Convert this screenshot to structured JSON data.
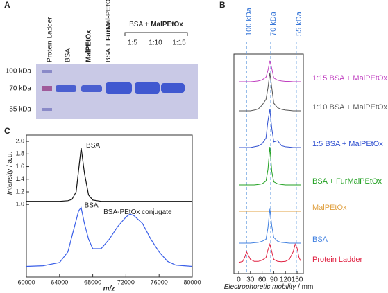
{
  "panel_a": {
    "letter": "A",
    "lanes": [
      "Protein Ladder",
      "BSA",
      "MalPEtOx"
    ],
    "lane4": [
      "BSA +",
      "FurMal-PEtOx"
    ],
    "group": [
      "BSA +",
      "MalPEtOx"
    ],
    "ratios": [
      "1:5",
      "1:10",
      "1:15"
    ],
    "markers": [
      "100 kDa",
      "70 kDa",
      "55 kDa"
    ]
  },
  "chart_data": [
    {
      "type": "line",
      "letter": "B",
      "xlabel": [
        "Electrophoretic mobility",
        "/ mm"
      ],
      "xlim": [
        -12.5,
        166
      ],
      "xticks": [
        0,
        30,
        60,
        90,
        120,
        150
      ],
      "marker_lines": [
        {
          "label": "100 kDa",
          "x": 20
        },
        {
          "label": "70 kDa",
          "x": 82
        },
        {
          "label": "55 kDa",
          "x": 148
        }
      ],
      "x": [
        0,
        10,
        15,
        20,
        25,
        30,
        40,
        50,
        60,
        70,
        75,
        80,
        85,
        90,
        100,
        110,
        120,
        130,
        140,
        145,
        150,
        155,
        160
      ],
      "series": [
        {
          "name": "1:15 BSA + MalPEtOx",
          "color": "#c040c0",
          "values": [
            0,
            0,
            0,
            0,
            0,
            0,
            0.01,
            0.02,
            0.05,
            0.12,
            0.3,
            0.55,
            0.35,
            0.1,
            0.04,
            0.02,
            0.01,
            0.01,
            0,
            0,
            0,
            0,
            0
          ]
        },
        {
          "name": "1:10 BSA + MalPEtOx",
          "color": "#555555",
          "values": [
            0,
            0,
            0,
            0,
            0,
            0,
            0.02,
            0.05,
            0.15,
            0.3,
            0.6,
            1.0,
            0.6,
            0.2,
            0.08,
            0.04,
            0.02,
            0.01,
            0,
            0,
            0,
            0,
            0
          ]
        },
        {
          "name": "1:5 BSA + MalPEtOx",
          "color": "#3050d0",
          "values": [
            0,
            0,
            0,
            0,
            0,
            0,
            0.02,
            0.04,
            0.1,
            0.25,
            0.7,
            1.0,
            0.5,
            0.15,
            0.18,
            0.05,
            0.02,
            0.01,
            0,
            0,
            0,
            0,
            0
          ]
        },
        {
          "name": "BSA + FurMalPEtOx",
          "color": "#20a020",
          "values": [
            0,
            0,
            0,
            0,
            0,
            0,
            0,
            0.01,
            0.03,
            0.1,
            0.4,
            1.0,
            0.35,
            0.08,
            0.03,
            0.01,
            0,
            0,
            0,
            0,
            0,
            0,
            0
          ]
        },
        {
          "name": "MalPEtOx",
          "color": "#e0a040",
          "values": [
            0,
            0,
            0,
            0,
            0,
            0,
            0,
            0,
            0,
            0,
            0,
            0,
            0,
            0,
            0,
            0,
            0,
            0,
            0,
            0,
            0,
            0,
            0
          ]
        },
        {
          "name": "BSA",
          "color": "#4080e0",
          "values": [
            0,
            0,
            0,
            0,
            0,
            0,
            0.01,
            0.02,
            0.05,
            0.1,
            0.4,
            0.9,
            0.45,
            0.15,
            0.05,
            0.02,
            0.01,
            0,
            0,
            0,
            0,
            0,
            0
          ]
        },
        {
          "name": "Protein Ladder",
          "color": "#e02040",
          "values": [
            0.02,
            0.05,
            0.15,
            0.3,
            0.2,
            0.1,
            0.05,
            0.05,
            0.08,
            0.15,
            0.35,
            0.5,
            0.3,
            0.1,
            0.05,
            0.04,
            0.05,
            0.1,
            0.3,
            0.5,
            0.4,
            0.15,
            0.05
          ]
        }
      ]
    },
    {
      "type": "line",
      "letter": "C",
      "xlabel": "m/z",
      "ylabel": [
        "Intensity",
        "/ a.u."
      ],
      "xlim": [
        60000,
        80000
      ],
      "xticks": [
        60000,
        64000,
        68000,
        72000,
        76000,
        80000
      ],
      "ylim": [
        -0.15,
        2.1
      ],
      "yticks": [
        {
          "value": 1,
          "label": "1.0"
        },
        {
          "value": 1.2,
          "label": "1.2"
        },
        {
          "value": 1.4,
          "label": "1.4"
        },
        {
          "value": 1.6,
          "label": "1.6"
        },
        {
          "value": 1.8,
          "label": "1.8"
        },
        {
          "value": 2,
          "label": "2.0"
        }
      ],
      "x": [
        60000,
        62000,
        64000,
        65000,
        65500,
        66000,
        66300,
        66600,
        67000,
        67500,
        68000,
        69000,
        70000,
        71000,
        72000,
        72500,
        73000,
        74000,
        75000,
        76000,
        77000,
        78000,
        80000
      ],
      "series": [
        {
          "color": "#111111",
          "values": [
            1.05,
            1.05,
            1.05,
            1.06,
            1.08,
            1.2,
            1.55,
            1.9,
            1.5,
            1.15,
            1.07,
            1.05,
            1.05,
            1.05,
            1.05,
            1.05,
            1.05,
            1.05,
            1.05,
            1.05,
            1.05,
            1.05,
            1.05
          ]
        },
        {
          "color": "#3a5fe8",
          "values": [
            0.02,
            0.03,
            0.08,
            0.25,
            0.5,
            0.75,
            0.9,
            0.95,
            0.7,
            0.45,
            0.3,
            0.3,
            0.45,
            0.65,
            0.8,
            0.85,
            0.82,
            0.7,
            0.45,
            0.25,
            0.1,
            0.04,
            0.02
          ]
        }
      ],
      "annotations": [
        {
          "text": "BSA",
          "x": 67200,
          "y": 1.93
        },
        {
          "text": "BSA",
          "x": 67000,
          "y": 0.98
        },
        {
          "text": "BSA-PEtOx conjugate",
          "x": 69300,
          "y": 0.88
        }
      ]
    }
  ]
}
